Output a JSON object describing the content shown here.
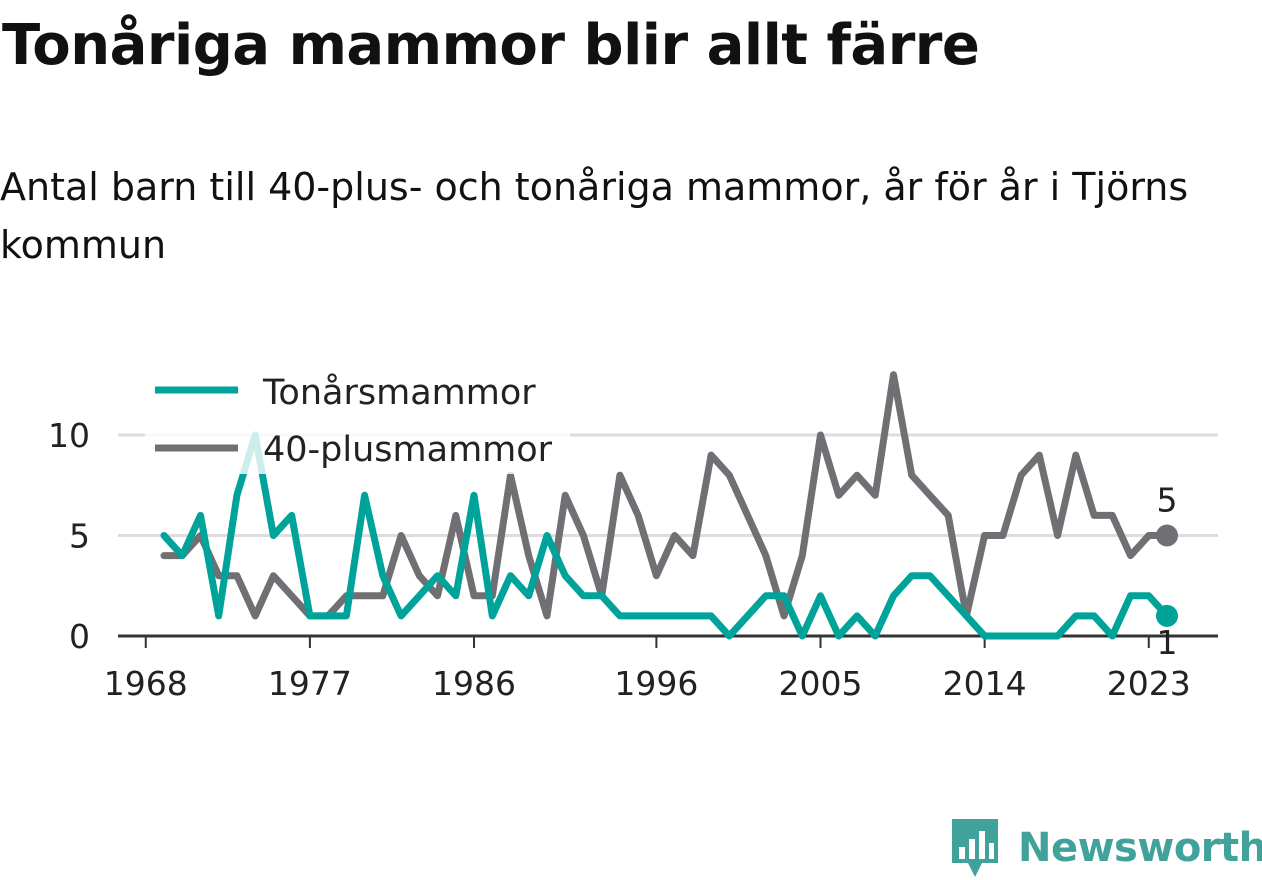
{
  "header": {
    "title": "Tonåriga mammor blir allt färre",
    "subtitle": "Antal barn till 40-plus- och tonåriga mammor, år för år i Tjörns kommun"
  },
  "brand": {
    "name": "Newsworthy",
    "color": "#41a29c"
  },
  "chart_data": {
    "type": "line",
    "x": [
      1969,
      1970,
      1971,
      1972,
      1973,
      1974,
      1975,
      1976,
      1977,
      1978,
      1979,
      1980,
      1981,
      1982,
      1983,
      1984,
      1985,
      1986,
      1987,
      1988,
      1989,
      1990,
      1991,
      1992,
      1993,
      1994,
      1995,
      1996,
      1997,
      1998,
      1999,
      2000,
      2001,
      2002,
      2003,
      2004,
      2005,
      2006,
      2007,
      2008,
      2009,
      2010,
      2011,
      2012,
      2013,
      2014,
      2015,
      2016,
      2017,
      2018,
      2019,
      2020,
      2021,
      2022,
      2023,
      2024
    ],
    "series": [
      {
        "name": "Tonårsmammor",
        "color": "#00a39a",
        "values": [
          5,
          4,
          6,
          1,
          7,
          10,
          5,
          6,
          1,
          1,
          1,
          7,
          3,
          1,
          2,
          3,
          2,
          7,
          1,
          3,
          2,
          5,
          3,
          2,
          2,
          1,
          1,
          1,
          1,
          1,
          1,
          0,
          1,
          2,
          2,
          0,
          2,
          0,
          1,
          0,
          2,
          3,
          3,
          2,
          1,
          0,
          0,
          0,
          0,
          0,
          1,
          1,
          0,
          2,
          2,
          1
        ]
      },
      {
        "name": "40-plusmammor",
        "color": "#707074",
        "values": [
          4,
          4,
          5,
          3,
          3,
          1,
          3,
          2,
          1,
          1,
          2,
          2,
          2,
          5,
          3,
          2,
          6,
          2,
          2,
          8,
          4,
          1,
          7,
          5,
          2,
          8,
          6,
          3,
          5,
          4,
          9,
          8,
          6,
          4,
          1,
          4,
          10,
          7,
          8,
          7,
          13,
          8,
          7,
          6,
          1,
          5,
          5,
          8,
          9,
          5,
          9,
          6,
          6,
          4,
          5,
          5
        ]
      }
    ],
    "end_labels": [
      {
        "series": "40-plusmammor",
        "text": "5"
      },
      {
        "series": "Tonårsmammor",
        "text": "1"
      }
    ],
    "x_ticks": [
      "1968",
      "1977",
      "1986",
      "1996",
      "2005",
      "2014",
      "2023"
    ],
    "y_ticks": [
      "0",
      "5",
      "10"
    ],
    "ylim": [
      0,
      13
    ],
    "grid": true,
    "legend": "top-left"
  }
}
